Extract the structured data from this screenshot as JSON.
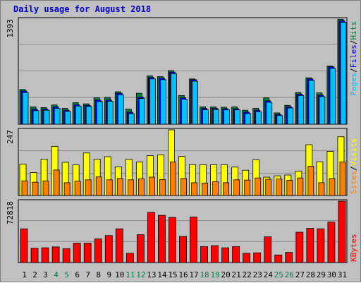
{
  "title": "Daily usage for August 2018",
  "colors": {
    "background": "#c0c0c0",
    "plot_bg": "#c0c0c0",
    "pages": "#00c0ff",
    "files": "#0000ff",
    "hits": "#008040",
    "sites": "#ff8000",
    "visits": "#ffff00",
    "kbytes": "#ff0000",
    "weekend_tick": "#00804a"
  },
  "chart_data": [
    {
      "type": "bar",
      "panel": "hits-files-pages",
      "max_label": "1393",
      "ylim": [
        0,
        1393
      ],
      "categories": [
        "1",
        "2",
        "3",
        "4",
        "5",
        "6",
        "7",
        "8",
        "9",
        "10",
        "11",
        "12",
        "13",
        "14",
        "15",
        "16",
        "17",
        "18",
        "19",
        "20",
        "21",
        "22",
        "23",
        "24",
        "25",
        "26",
        "27",
        "28",
        "29",
        "30",
        "31"
      ],
      "weekend_days": [
        "4",
        "5",
        "11",
        "12",
        "18",
        "19",
        "25",
        "26"
      ],
      "side_labels": [
        "Pages",
        "Files",
        "Hits"
      ],
      "series": [
        {
          "name": "Hits",
          "values": [
            460,
            230,
            220,
            255,
            210,
            285,
            270,
            350,
            355,
            430,
            200,
            410,
            640,
            630,
            710,
            380,
            600,
            230,
            230,
            225,
            230,
            185,
            210,
            350,
            150,
            250,
            420,
            615,
            415,
            770,
            1390
          ]
        },
        {
          "name": "Files",
          "values": [
            440,
            200,
            200,
            230,
            185,
            255,
            250,
            320,
            320,
            410,
            160,
            360,
            620,
            610,
            690,
            350,
            590,
            210,
            210,
            205,
            205,
            160,
            185,
            310,
            130,
            230,
            400,
            600,
            385,
            760,
            1370
          ]
        },
        {
          "name": "Pages",
          "values": [
            420,
            180,
            185,
            210,
            170,
            240,
            235,
            300,
            305,
            390,
            140,
            340,
            600,
            590,
            670,
            330,
            570,
            190,
            195,
            190,
            190,
            140,
            165,
            290,
            115,
            215,
            380,
            580,
            365,
            740,
            1350
          ]
        }
      ]
    },
    {
      "type": "bar",
      "panel": "visits-sites",
      "max_label": "247",
      "ylim": [
        0,
        247
      ],
      "categories": [
        "1",
        "2",
        "3",
        "4",
        "5",
        "6",
        "7",
        "8",
        "9",
        "10",
        "11",
        "12",
        "13",
        "14",
        "15",
        "16",
        "17",
        "18",
        "19",
        "20",
        "21",
        "22",
        "23",
        "24",
        "25",
        "26",
        "27",
        "28",
        "29",
        "30",
        "31"
      ],
      "side_labels": [
        "Sites",
        "Visits"
      ],
      "series": [
        {
          "name": "Visits",
          "values": [
            118,
            86,
            137,
            185,
            125,
            115,
            160,
            137,
            146,
            108,
            136,
            126,
            150,
            153,
            247,
            147,
            116,
            116,
            116,
            116,
            107,
            95,
            134,
            69,
            74,
            77,
            92,
            191,
            127,
            166,
            221
          ]
        },
        {
          "name": "Sites",
          "values": [
            55,
            50,
            55,
            96,
            48,
            54,
            59,
            70,
            59,
            64,
            59,
            63,
            69,
            60,
            126,
            64,
            48,
            47,
            52,
            48,
            59,
            58,
            66,
            61,
            62,
            57,
            66,
            110,
            48,
            64,
            126
          ]
        }
      ]
    },
    {
      "type": "bar",
      "panel": "kbytes",
      "max_label": "72818",
      "ylim": [
        0,
        72818
      ],
      "categories": [
        "1",
        "2",
        "3",
        "4",
        "5",
        "6",
        "7",
        "8",
        "9",
        "10",
        "11",
        "12",
        "13",
        "14",
        "15",
        "16",
        "17",
        "18",
        "19",
        "20",
        "21",
        "22",
        "23",
        "24",
        "25",
        "26",
        "27",
        "28",
        "29",
        "30",
        "31"
      ],
      "side_labels": [
        "KBytes"
      ],
      "series": [
        {
          "name": "KBytes",
          "values": [
            40000,
            17000,
            17500,
            18500,
            16500,
            23000,
            23000,
            28000,
            32000,
            40000,
            11000,
            33000,
            59500,
            56000,
            53500,
            31000,
            54000,
            19000,
            20000,
            17500,
            19000,
            11000,
            11500,
            30500,
            9000,
            12000,
            36000,
            40500,
            40000,
            48000,
            72818
          ]
        }
      ]
    }
  ]
}
